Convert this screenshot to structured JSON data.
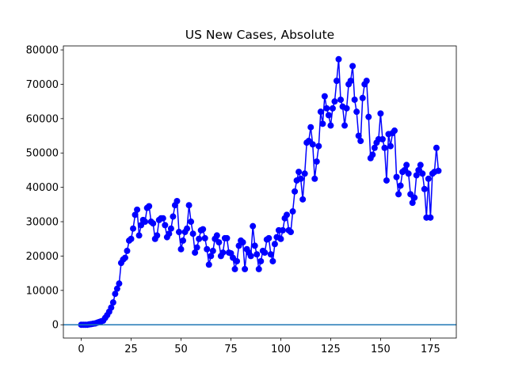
{
  "chart_data": {
    "type": "line",
    "title": "US New Cases, Absolute",
    "x": [
      0,
      1,
      2,
      3,
      4,
      5,
      6,
      7,
      8,
      9,
      10,
      11,
      12,
      13,
      14,
      15,
      16,
      17,
      18,
      19,
      20,
      21,
      22,
      23,
      24,
      25,
      26,
      27,
      28,
      29,
      30,
      31,
      32,
      33,
      34,
      35,
      36,
      37,
      38,
      39,
      40,
      41,
      42,
      43,
      44,
      45,
      46,
      47,
      48,
      49,
      50,
      51,
      52,
      53,
      54,
      55,
      56,
      57,
      58,
      59,
      60,
      61,
      62,
      63,
      64,
      65,
      66,
      67,
      68,
      69,
      70,
      71,
      72,
      73,
      74,
      75,
      76,
      77,
      78,
      79,
      80,
      81,
      82,
      83,
      84,
      85,
      86,
      87,
      88,
      89,
      90,
      91,
      92,
      93,
      94,
      95,
      96,
      97,
      98,
      99,
      100,
      101,
      102,
      103,
      104,
      105,
      106,
      107,
      108,
      109,
      110,
      111,
      112,
      113,
      114,
      115,
      116,
      117,
      118,
      119,
      120,
      121,
      122,
      123,
      124,
      125,
      126,
      127,
      128,
      129,
      130,
      131,
      132,
      133,
      134,
      135,
      136,
      137,
      138,
      139,
      140,
      141,
      142,
      143,
      144,
      145,
      146,
      147,
      148,
      149,
      150,
      151,
      152,
      153,
      154,
      155,
      156,
      157,
      158,
      159,
      160,
      161,
      162,
      163,
      164,
      165,
      166,
      167,
      168,
      169,
      170,
      171,
      172,
      173,
      174,
      175,
      176,
      177,
      178,
      179
    ],
    "series": [
      {
        "color": "#0000ff",
        "values": [
          0,
          0,
          0,
          0,
          100,
          200,
          300,
          400,
          600,
          800,
          1000,
          1200,
          2000,
          2800,
          3800,
          5000,
          6500,
          9000,
          10500,
          12000,
          18000,
          19000,
          19500,
          21500,
          24500,
          25000,
          28000,
          32000,
          33500,
          26000,
          29000,
          30500,
          30000,
          34000,
          34500,
          30000,
          29500,
          25000,
          26000,
          30500,
          31000,
          31000,
          29000,
          25500,
          26500,
          28000,
          31500,
          34800,
          36000,
          27000,
          22000,
          24500,
          27000,
          28000,
          34800,
          30000,
          26500,
          21000,
          22500,
          25000,
          27500,
          27800,
          25200,
          22000,
          17500,
          20000,
          21500,
          25000,
          26000,
          24000,
          20000,
          21000,
          25200,
          25200,
          21000,
          20800,
          19500,
          16200,
          18500,
          23000,
          24500,
          24000,
          16200,
          22000,
          21000,
          20000,
          28700,
          23000,
          20500,
          16200,
          18500,
          21500,
          21000,
          24800,
          25200,
          20500,
          18500,
          23500,
          25500,
          27500,
          25000,
          27500,
          31000,
          32000,
          27500,
          27000,
          33000,
          38800,
          42000,
          44500,
          42500,
          36500,
          44000,
          53000,
          53500,
          57500,
          52500,
          42500,
          47500,
          52000,
          62000,
          58500,
          66500,
          63000,
          61000,
          58000,
          63000,
          65000,
          71000,
          77300,
          65500,
          63500,
          58000,
          63000,
          70000,
          71000,
          75300,
          65500,
          62000,
          55000,
          53500,
          66000,
          70000,
          71000,
          60500,
          48500,
          49500,
          51500,
          53000,
          54000,
          61500,
          54000,
          51500,
          42000,
          55500,
          52000,
          55800,
          56500,
          43000,
          38000,
          40500,
          44500,
          45000,
          46500,
          44000,
          38000,
          35500,
          37000,
          43500,
          45000,
          46500,
          44000,
          39500,
          31200,
          42500,
          31200,
          44000,
          44500,
          51500,
          44800
        ]
      }
    ],
    "hline": 0,
    "hline_color": "#1f77b4",
    "xlim": [
      -8.95,
      187.95
    ],
    "xticks": [
      0,
      25,
      50,
      75,
      100,
      125,
      150,
      175
    ],
    "ylim": [
      -3865,
      81165
    ],
    "yticks": [
      0,
      10000,
      20000,
      30000,
      40000,
      50000,
      60000,
      70000,
      80000
    ]
  }
}
